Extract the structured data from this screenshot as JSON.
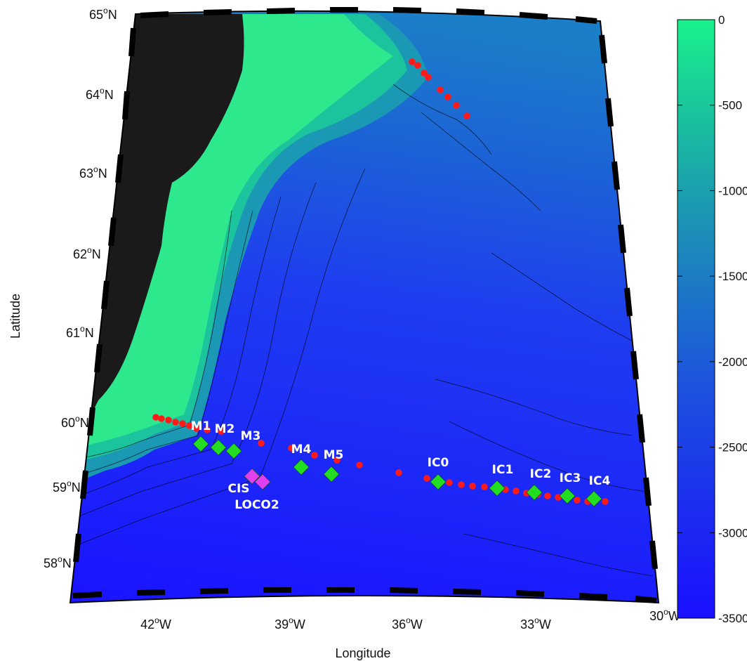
{
  "map": {
    "xlabel": "Longitude",
    "ylabel": "Latitude",
    "lon_ticks": [
      {
        "deg": "42",
        "hemi": "W"
      },
      {
        "deg": "39",
        "hemi": "W"
      },
      {
        "deg": "36",
        "hemi": "W"
      },
      {
        "deg": "33",
        "hemi": "W"
      },
      {
        "deg": "30",
        "hemi": "W"
      }
    ],
    "lat_ticks": [
      {
        "deg": "65",
        "hemi": "N"
      },
      {
        "deg": "64",
        "hemi": "N"
      },
      {
        "deg": "63",
        "hemi": "N"
      },
      {
        "deg": "62",
        "hemi": "N"
      },
      {
        "deg": "61",
        "hemi": "N"
      },
      {
        "deg": "60",
        "hemi": "N"
      },
      {
        "deg": "59",
        "hemi": "N"
      },
      {
        "deg": "58",
        "hemi": "N"
      }
    ],
    "colorbar": {
      "ticks": [
        "0",
        "-500",
        "-1000",
        "-1500",
        "-2000",
        "-2500",
        "-3000",
        "-3500"
      ],
      "top_color": "#19f28c",
      "bottom_color": "#1a10ff"
    },
    "colors": {
      "land": "#1a1a1a",
      "shelf": "#2ee88e",
      "deep": "#1e24f0",
      "mooring": "#22dd22",
      "other_mooring": "#e040f0",
      "station": "#ff1a1a"
    },
    "moorings": [
      {
        "name": "M1"
      },
      {
        "name": "M2"
      },
      {
        "name": "M3"
      },
      {
        "name": "M4"
      },
      {
        "name": "M5"
      },
      {
        "name": "IC0"
      },
      {
        "name": "IC1"
      },
      {
        "name": "IC2"
      },
      {
        "name": "IC3"
      },
      {
        "name": "IC4"
      }
    ],
    "other_moorings": [
      {
        "name": "CIS"
      },
      {
        "name": "LOCO2"
      }
    ]
  }
}
